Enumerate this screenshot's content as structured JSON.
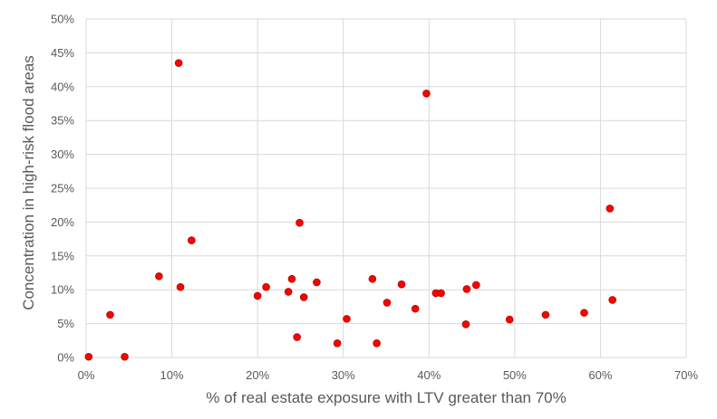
{
  "chart_data": {
    "type": "scatter",
    "title": "",
    "xlabel": "% of real estate exposure with LTV greater than 70%",
    "ylabel": "Concentration in high-risk flood areas",
    "xlim": [
      0,
      70
    ],
    "ylim": [
      0,
      50
    ],
    "x_ticks": [
      0,
      10,
      20,
      30,
      40,
      50,
      60,
      70
    ],
    "y_ticks": [
      0,
      5,
      10,
      15,
      20,
      25,
      30,
      35,
      40,
      45,
      50
    ],
    "x_tick_labels": [
      "0%",
      "10%",
      "20%",
      "30%",
      "40%",
      "50%",
      "60%",
      "70%"
    ],
    "y_tick_labels": [
      "0%",
      "5%",
      "10%",
      "15%",
      "20%",
      "25%",
      "30%",
      "35%",
      "40%",
      "45%",
      "50%"
    ],
    "grid": true,
    "legend": "none",
    "marker_color": "#ff0000",
    "marker_edge_color": "#c00000",
    "points": [
      {
        "x": 0.3,
        "y": 0.1
      },
      {
        "x": 2.8,
        "y": 6.3
      },
      {
        "x": 4.5,
        "y": 0.1
      },
      {
        "x": 8.5,
        "y": 12.0
      },
      {
        "x": 10.8,
        "y": 43.5
      },
      {
        "x": 11.0,
        "y": 10.4
      },
      {
        "x": 12.3,
        "y": 17.3
      },
      {
        "x": 20.0,
        "y": 9.1
      },
      {
        "x": 21.0,
        "y": 10.4
      },
      {
        "x": 23.6,
        "y": 9.7
      },
      {
        "x": 24.0,
        "y": 11.6
      },
      {
        "x": 24.6,
        "y": 3.0
      },
      {
        "x": 24.9,
        "y": 19.9
      },
      {
        "x": 25.4,
        "y": 8.9
      },
      {
        "x": 26.9,
        "y": 11.1
      },
      {
        "x": 29.3,
        "y": 2.1
      },
      {
        "x": 30.4,
        "y": 5.7
      },
      {
        "x": 33.4,
        "y": 11.6
      },
      {
        "x": 33.9,
        "y": 2.1
      },
      {
        "x": 35.1,
        "y": 8.1
      },
      {
        "x": 36.8,
        "y": 10.8
      },
      {
        "x": 38.4,
        "y": 7.2
      },
      {
        "x": 39.7,
        "y": 39.0
      },
      {
        "x": 40.8,
        "y": 9.5
      },
      {
        "x": 41.4,
        "y": 9.5
      },
      {
        "x": 44.3,
        "y": 4.9
      },
      {
        "x": 44.4,
        "y": 10.1
      },
      {
        "x": 45.5,
        "y": 10.7
      },
      {
        "x": 49.4,
        "y": 5.6
      },
      {
        "x": 53.6,
        "y": 6.3
      },
      {
        "x": 58.1,
        "y": 6.6
      },
      {
        "x": 61.1,
        "y": 22.0
      },
      {
        "x": 61.4,
        "y": 8.5
      }
    ]
  }
}
